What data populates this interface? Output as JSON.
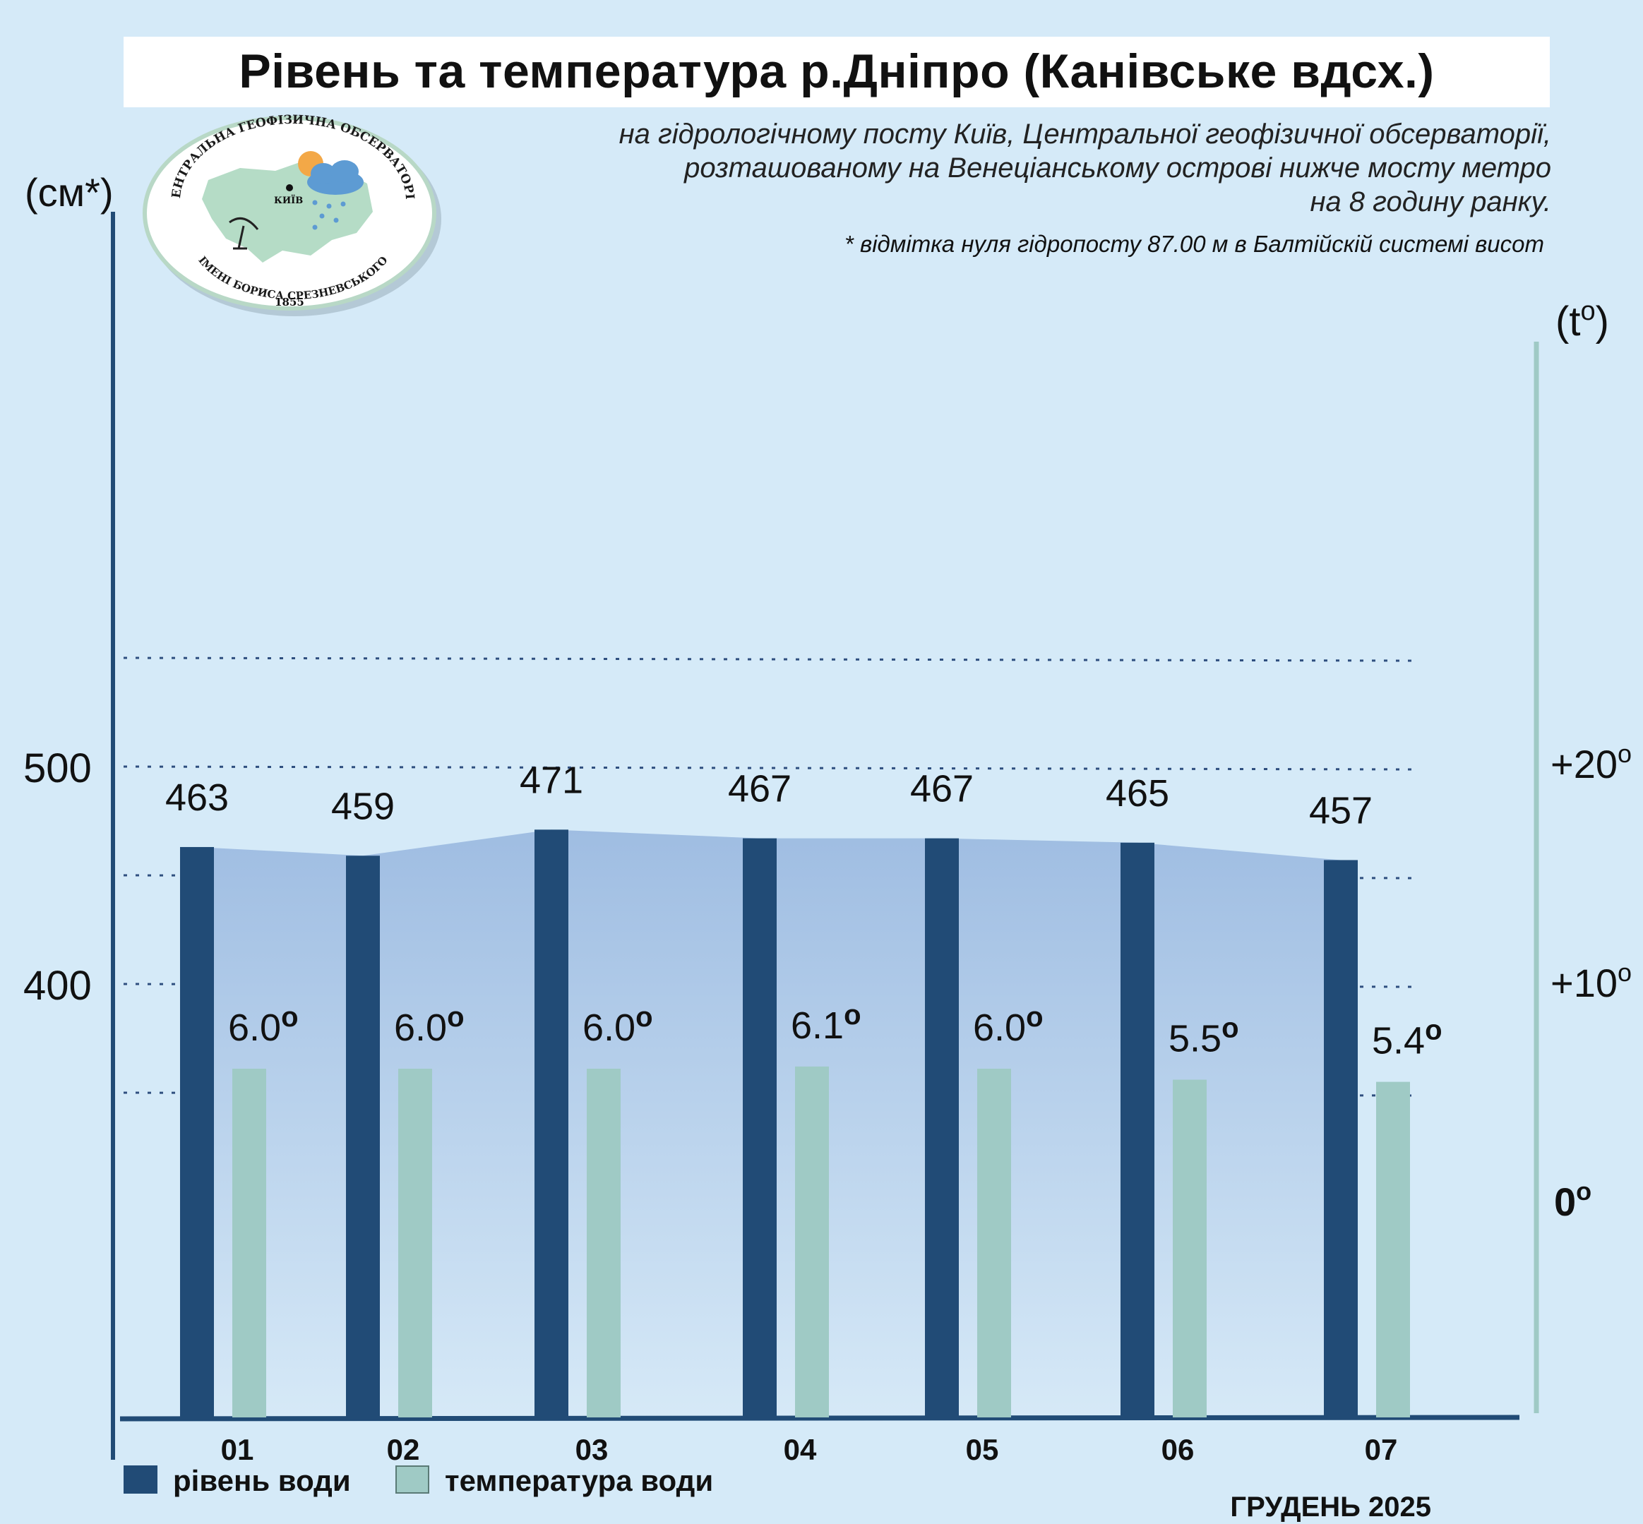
{
  "title": "Рівень та температура р.Дніпро (Канівське вдсх.)",
  "subtitle_lines": [
    "на гідрологічному посту Київ, Центральної геофізичної обсерваторії,",
    "розташованому на Венеціанському острові нижче мосту метро",
    "на 8 годину ранку."
  ],
  "footnote": "* відмітка нуля гідропосту 87.00 м в Балтійскій системі висот",
  "logo": {
    "top_text": "ЦЕНТРАЛЬНА ГЕОФІЗИЧНА ОБСЕРВАТОРІЯ",
    "bottom_text": "ІМЕНІ БОРИСА СРЕЗНЕВСЬКОГО",
    "city": "КИЇВ",
    "year": "1855"
  },
  "legend": {
    "level": "рівень води",
    "temperature": "температура води"
  },
  "month_label": "ГРУДЕНЬ 2025",
  "colors": {
    "background": "#d5eaf8",
    "level_bar": "#214b76",
    "temp_bar": "#9fcac5",
    "area_top": "#9fbde2",
    "area_bottom": "#d6e9f7",
    "temp_axis": "#9fcac5"
  },
  "chart_data": {
    "type": "bar",
    "categories": [
      "01",
      "02",
      "03",
      "04",
      "05",
      "06",
      "07"
    ],
    "series": [
      {
        "name": "рівень води",
        "axis": "left",
        "values": [
          463,
          459,
          471,
          467,
          467,
          465,
          457
        ],
        "labels": [
          "463",
          "459",
          "471",
          "467",
          "467",
          "465",
          "457"
        ]
      },
      {
        "name": "температура води",
        "axis": "right",
        "values": [
          6.0,
          6.0,
          6.0,
          6.1,
          6.0,
          5.5,
          5.4
        ],
        "labels": [
          "6.0",
          "6.0",
          "6.0",
          "6.1",
          "6.0",
          "5.5",
          "5.4"
        ]
      }
    ],
    "y_left": {
      "unit_label": "(см*)",
      "range": [
        300,
        550
      ],
      "ticks": [
        400,
        500
      ],
      "tick_labels": [
        "400",
        "500"
      ]
    },
    "y_right": {
      "unit_label": "(t",
      "unit_suffix": ")",
      "range": [
        -5,
        25
      ],
      "ticks": [
        0,
        10,
        20
      ],
      "tick_labels": [
        "0",
        "+10",
        "+20"
      ]
    },
    "area_under_level": true,
    "grid": "dotted-horizontal"
  }
}
